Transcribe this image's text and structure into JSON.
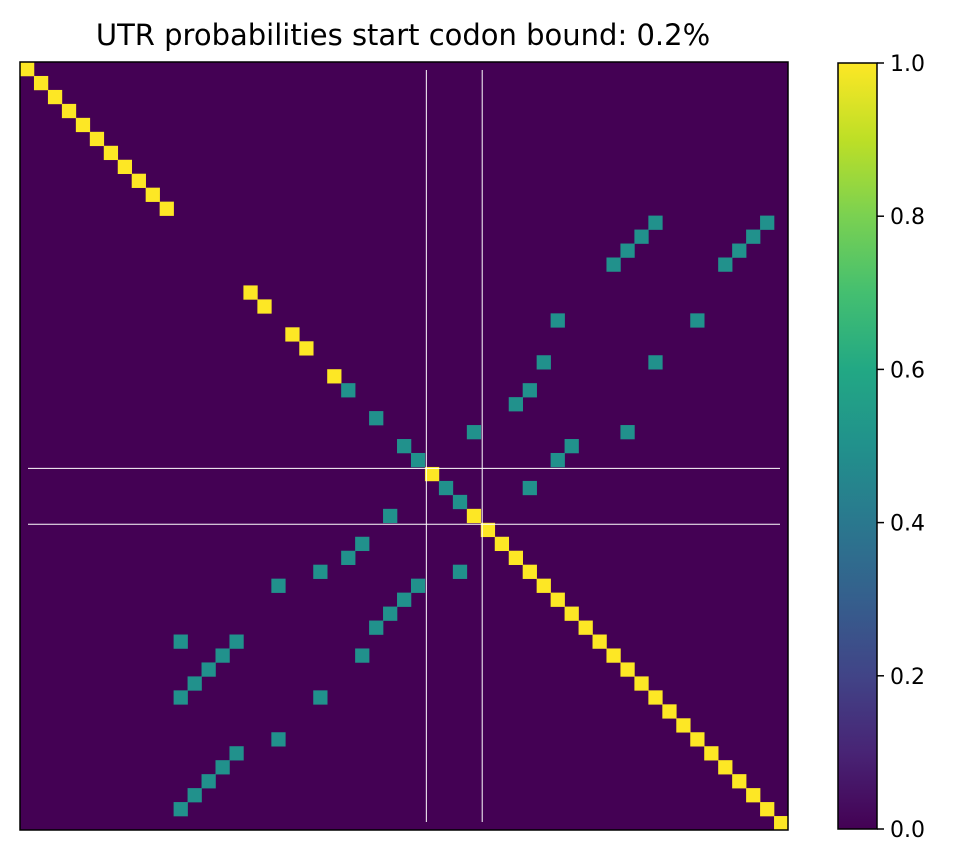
{
  "chart_data": {
    "type": "heatmap",
    "title": "UTR probabilities start codon bound: 0.2%",
    "xlabel": "",
    "ylabel": "",
    "n": 55,
    "value_range": [
      0,
      1
    ],
    "colormap": "viridis",
    "x_ticks_visible": false,
    "y_ticks_visible": false,
    "guide_lines": {
      "color": "#ffffff",
      "vertical_at_col": [
        29,
        33
      ],
      "horizontal_at_row": [
        29,
        33
      ]
    },
    "background_value": 0.0,
    "cells": [
      {
        "name": "diagonal-upper-left",
        "value": 1.0,
        "coords": [
          [
            0,
            0
          ],
          [
            1,
            1
          ],
          [
            2,
            2
          ],
          [
            3,
            3
          ],
          [
            4,
            4
          ],
          [
            5,
            5
          ],
          [
            6,
            6
          ],
          [
            7,
            7
          ],
          [
            8,
            8
          ],
          [
            9,
            9
          ],
          [
            10,
            10
          ]
        ]
      },
      {
        "name": "diagonal-middle",
        "value": 1.0,
        "coords": [
          [
            16,
            16
          ],
          [
            17,
            17
          ],
          [
            19,
            19
          ],
          [
            20,
            20
          ],
          [
            22,
            22
          ],
          [
            29,
            29
          ],
          [
            32,
            32
          ],
          [
            33,
            33
          ]
        ]
      },
      {
        "name": "diagonal-lower-right",
        "value": 1.0,
        "coords": [
          [
            34,
            34
          ],
          [
            35,
            35
          ],
          [
            36,
            36
          ],
          [
            37,
            37
          ],
          [
            38,
            38
          ],
          [
            39,
            39
          ],
          [
            40,
            40
          ],
          [
            41,
            41
          ],
          [
            42,
            42
          ],
          [
            43,
            43
          ],
          [
            44,
            44
          ],
          [
            45,
            45
          ],
          [
            46,
            46
          ],
          [
            47,
            47
          ],
          [
            48,
            48
          ],
          [
            49,
            49
          ],
          [
            50,
            50
          ],
          [
            51,
            51
          ],
          [
            52,
            52
          ],
          [
            53,
            53
          ],
          [
            54,
            54
          ]
        ]
      },
      {
        "name": "pairing-cells",
        "value": 0.5,
        "coords": [
          [
            11,
            45
          ],
          [
            12,
            44
          ],
          [
            13,
            43
          ],
          [
            14,
            42
          ],
          [
            11,
            53
          ],
          [
            12,
            52
          ],
          [
            13,
            51
          ],
          [
            14,
            50
          ],
          [
            18,
            38
          ],
          [
            18,
            48
          ],
          [
            21,
            37
          ],
          [
            21,
            45
          ],
          [
            23,
            23
          ],
          [
            23,
            36
          ],
          [
            24,
            35
          ],
          [
            25,
            25
          ],
          [
            26,
            32
          ],
          [
            26,
            43
          ],
          [
            27,
            27
          ],
          [
            27,
            39
          ],
          [
            28,
            28
          ],
          [
            28,
            38
          ],
          [
            30,
            30
          ],
          [
            30,
            36
          ],
          [
            31,
            31
          ],
          [
            32,
            26
          ],
          [
            34,
            24
          ],
          [
            35,
            23
          ],
          [
            36,
            21
          ],
          [
            36,
            31
          ],
          [
            37,
            18
          ],
          [
            37,
            28
          ],
          [
            38,
            27
          ],
          [
            39,
            26
          ],
          [
            40,
            25
          ],
          [
            41,
            11
          ],
          [
            41,
            15
          ],
          [
            42,
            14
          ],
          [
            42,
            24
          ],
          [
            43,
            13
          ],
          [
            44,
            12
          ],
          [
            45,
            11
          ],
          [
            45,
            21
          ],
          [
            48,
            18
          ],
          [
            49,
            15
          ],
          [
            50,
            14
          ],
          [
            51,
            13
          ],
          [
            52,
            12
          ],
          [
            53,
            11
          ]
        ]
      }
    ],
    "colorbar": {
      "ticks": [
        "0.0",
        "0.2",
        "0.4",
        "0.6",
        "0.8",
        "1.0"
      ],
      "tick_values": [
        0.0,
        0.2,
        0.4,
        0.6,
        0.8,
        1.0
      ]
    }
  }
}
